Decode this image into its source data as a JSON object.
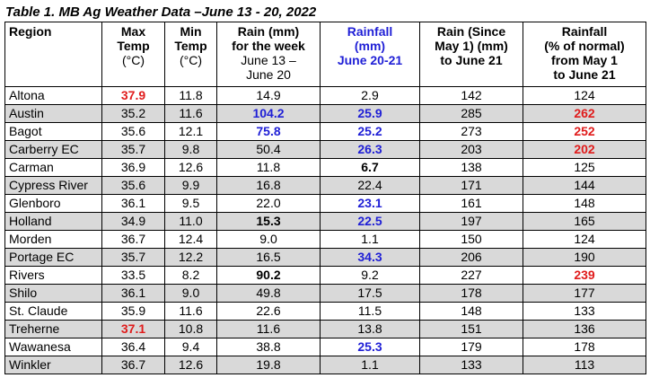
{
  "caption": "Table 1. MB Ag Weather Data –June 13 - 20, 2022",
  "headers": {
    "region": "Region",
    "max_temp": [
      "Max",
      "Temp",
      "(°C)"
    ],
    "min_temp": [
      "Min",
      "Temp",
      "(°C)"
    ],
    "rain_week": [
      "Rain (mm)",
      "for the week"
    ],
    "rain_week_sub": [
      "June 13 –",
      "June 20"
    ],
    "rainfall_mm": [
      "Rainfall",
      "(mm)",
      "June 20-21"
    ],
    "rain_since": [
      "Rain (Since",
      "May 1) (mm)",
      "to June 21"
    ],
    "rainfall_pct": [
      "Rainfall",
      "(% of normal)",
      "from May 1",
      "to June 21"
    ]
  },
  "rows": [
    {
      "region": "Altona",
      "max": "37.9",
      "min": "11.8",
      "week": "14.9",
      "r2021": "2.9",
      "since": "142",
      "pct": "124",
      "max_style": "red"
    },
    {
      "region": "Austin",
      "max": "35.2",
      "min": "11.6",
      "week": "104.2",
      "r2021": "25.9",
      "since": "285",
      "pct": "262",
      "week_style": "blue",
      "r2021_style": "blue",
      "pct_style": "red"
    },
    {
      "region": "Bagot",
      "max": "35.6",
      "min": "12.1",
      "week": "75.8",
      "r2021": "25.2",
      "since": "273",
      "pct": "252",
      "week_style": "blue",
      "r2021_style": "blue",
      "pct_style": "red"
    },
    {
      "region": "Carberry EC",
      "max": "35.7",
      "min": "9.8",
      "week": "50.4",
      "r2021": "26.3",
      "since": "203",
      "pct": "202",
      "r2021_style": "blue",
      "pct_style": "red"
    },
    {
      "region": "Carman",
      "max": "36.9",
      "min": "12.6",
      "week": "11.8",
      "r2021": "6.7",
      "since": "138",
      "pct": "125",
      "r2021_style": "b"
    },
    {
      "region": "Cypress River",
      "max": "35.6",
      "min": "9.9",
      "week": "16.8",
      "r2021": "22.4",
      "since": "171",
      "pct": "144"
    },
    {
      "region": "Glenboro",
      "max": "36.1",
      "min": "9.5",
      "week": "22.0",
      "r2021": "23.1",
      "since": "161",
      "pct": "148",
      "r2021_style": "blue"
    },
    {
      "region": "Holland",
      "max": "34.9",
      "min": "11.0",
      "week": "15.3",
      "r2021": "22.5",
      "since": "197",
      "pct": "165",
      "week_style": "b",
      "r2021_style": "blue"
    },
    {
      "region": "Morden",
      "max": "36.7",
      "min": "12.4",
      "week": "9.0",
      "r2021": "1.1",
      "since": "150",
      "pct": "124"
    },
    {
      "region": "Portage EC",
      "max": "35.7",
      "min": "12.2",
      "week": "16.5",
      "r2021": "34.3",
      "since": "206",
      "pct": "190",
      "r2021_style": "blue"
    },
    {
      "region": "Rivers",
      "max": "33.5",
      "min": "8.2",
      "week": "90.2",
      "r2021": "9.2",
      "since": "227",
      "pct": "239",
      "week_style": "b",
      "pct_style": "red"
    },
    {
      "region": "Shilo",
      "max": "36.1",
      "min": "9.0",
      "week": "49.8",
      "r2021": "17.5",
      "since": "178",
      "pct": "177"
    },
    {
      "region": "St. Claude",
      "max": "35.9",
      "min": "11.6",
      "week": "22.6",
      "r2021": "11.5",
      "since": "148",
      "pct": "133"
    },
    {
      "region": "Treherne",
      "max": "37.1",
      "min": "10.8",
      "week": "11.6",
      "r2021": "13.8",
      "since": "151",
      "pct": "136",
      "max_style": "red"
    },
    {
      "region": "Wawanesa",
      "max": "36.4",
      "min": "9.4",
      "week": "38.8",
      "r2021": "25.3",
      "since": "179",
      "pct": "178",
      "r2021_style": "blue"
    },
    {
      "region": "Winkler",
      "max": "36.7",
      "min": "12.6",
      "week": "19.8",
      "r2021": "1.1",
      "since": "133",
      "pct": "113"
    }
  ],
  "colors": {
    "highlight_red": "#e01b1b",
    "highlight_blue": "#1f1fd6",
    "row_shade": "#d9d9d9"
  }
}
